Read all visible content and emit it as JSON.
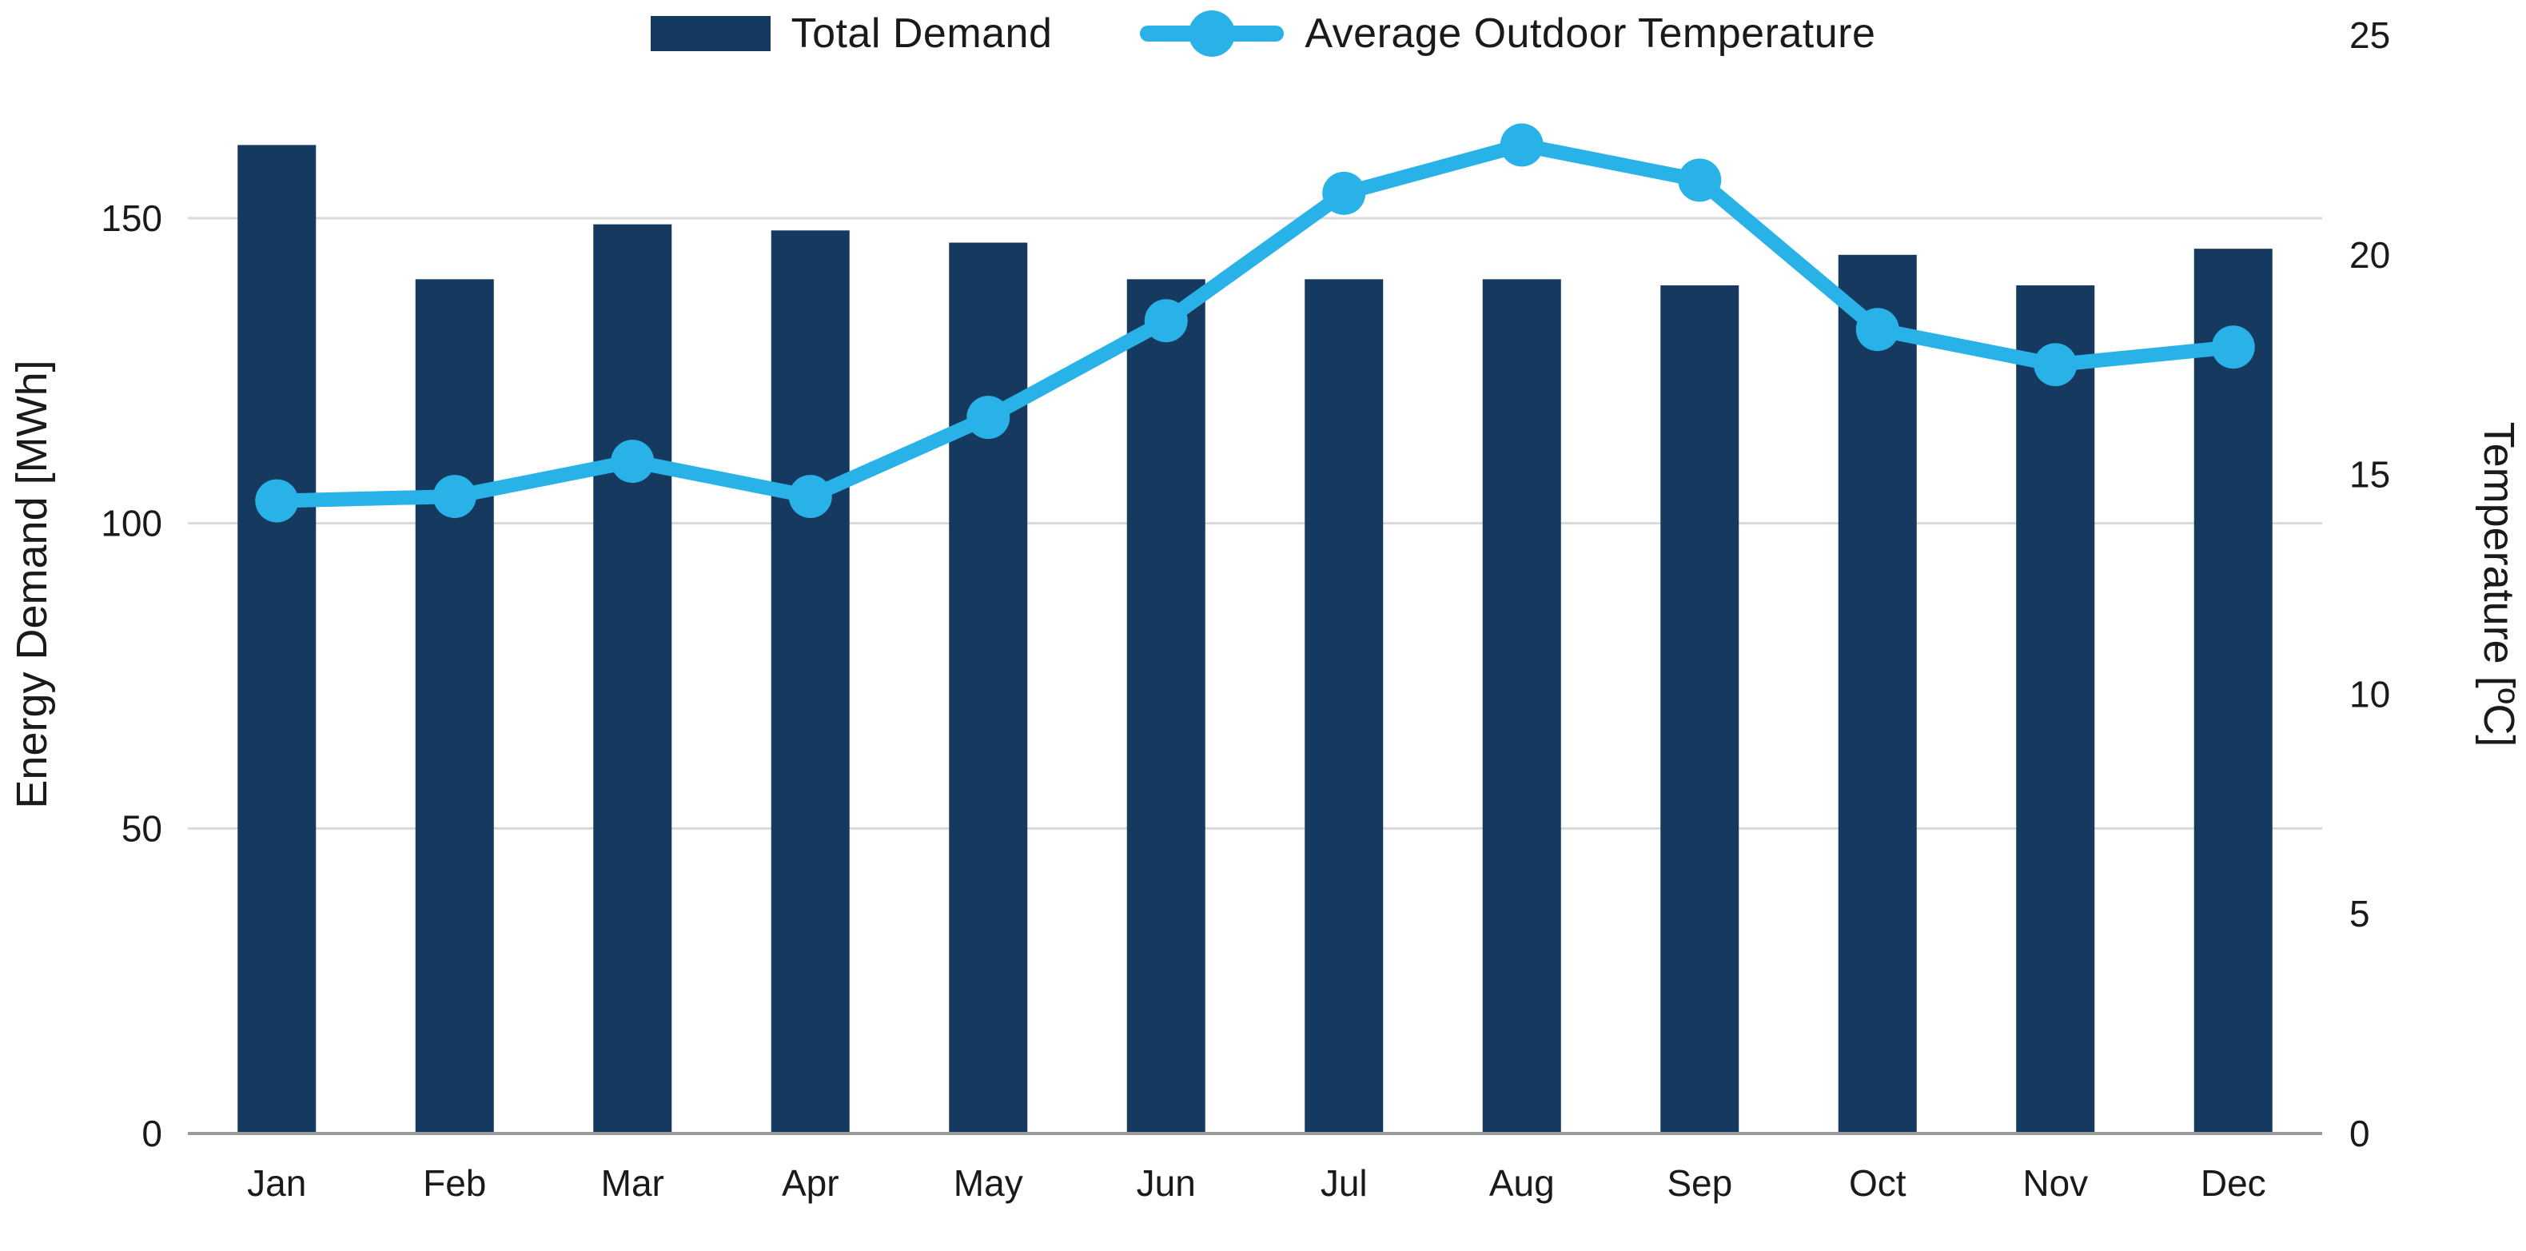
{
  "chart_data": {
    "type": "combo",
    "categories": [
      "Jan",
      "Feb",
      "Mar",
      "Apr",
      "May",
      "Jun",
      "Jul",
      "Aug",
      "Sep",
      "Oct",
      "Nov",
      "Dec"
    ],
    "series": [
      {
        "name": "Total Demand",
        "type": "bar",
        "axis": "left",
        "values": [
          162,
          140,
          149,
          148,
          146,
          140,
          140,
          140,
          139,
          144,
          139,
          145
        ]
      },
      {
        "name": "Average Outdoor Temperature",
        "type": "line",
        "axis": "right",
        "values": [
          14.4,
          14.5,
          15.3,
          14.5,
          16.3,
          18.5,
          21.4,
          22.5,
          21.7,
          18.3,
          17.5,
          17.9
        ]
      }
    ],
    "left_axis": {
      "label": "Energy Demand [MWh]",
      "ticks": [
        0,
        50,
        100,
        150
      ],
      "min": 0,
      "max": 180
    },
    "right_axis": {
      "label": "Temperature [ºC]",
      "ticks": [
        0,
        5,
        10,
        15,
        20,
        25
      ],
      "min": 0,
      "max": 25
    },
    "legend_position": "top",
    "grid": true,
    "colors": {
      "bar": "#16395F",
      "line": "#29B2E8",
      "grid": "#D9D9D9",
      "axis_line": "#9B9B9B",
      "text": "#1A1A1A"
    }
  }
}
